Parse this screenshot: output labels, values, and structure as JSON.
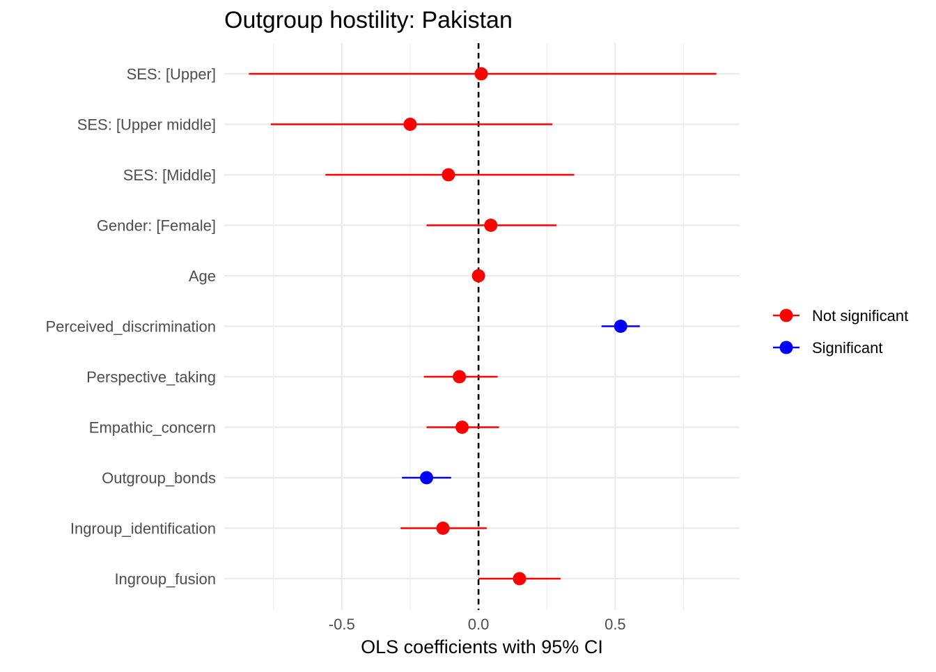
{
  "chart_data": {
    "type": "forest",
    "title": "Outgroup hostility: Pakistan",
    "xlabel": "OLS coefficients with 95% CI",
    "ylabel": "",
    "xlim": [
      -0.93,
      0.955
    ],
    "x_ticks": [
      -0.5,
      0.0,
      0.5
    ],
    "x_tick_labels": [
      "-0.5",
      "0.0",
      "0.5"
    ],
    "reference_line": 0,
    "grid": true,
    "legend_position": "right",
    "colors": {
      "Not significant": "#ff0000",
      "Significant": "#0000ff",
      "grid": "#ebebeb",
      "reference": "#000000"
    },
    "legend": [
      {
        "label": "Not significant",
        "color": "#ff0000"
      },
      {
        "label": "Significant",
        "color": "#0000ff"
      }
    ],
    "terms": [
      {
        "label": "SES:  [Upper]",
        "estimate": 0.01,
        "ci_low": -0.84,
        "ci_high": 0.87,
        "group": "Not significant"
      },
      {
        "label": "SES:  [Upper middle]",
        "estimate": -0.25,
        "ci_low": -0.76,
        "ci_high": 0.27,
        "group": "Not significant"
      },
      {
        "label": "SES:  [Middle]",
        "estimate": -0.11,
        "ci_low": -0.56,
        "ci_high": 0.35,
        "group": "Not significant"
      },
      {
        "label": "Gender:  [Female]",
        "estimate": 0.045,
        "ci_low": -0.19,
        "ci_high": 0.285,
        "group": "Not significant"
      },
      {
        "label": "Age",
        "estimate": 0.0,
        "ci_low": -0.005,
        "ci_high": 0.005,
        "group": "Not significant"
      },
      {
        "label": "Perceived_discrimination",
        "estimate": 0.52,
        "ci_low": 0.45,
        "ci_high": 0.59,
        "group": "Significant"
      },
      {
        "label": "Perspective_taking",
        "estimate": -0.07,
        "ci_low": -0.2,
        "ci_high": 0.07,
        "group": "Not significant"
      },
      {
        "label": "Empathic_concern",
        "estimate": -0.06,
        "ci_low": -0.19,
        "ci_high": 0.075,
        "group": "Not significant"
      },
      {
        "label": "Outgroup_bonds",
        "estimate": -0.19,
        "ci_low": -0.28,
        "ci_high": -0.1,
        "group": "Significant"
      },
      {
        "label": "Ingroup_identification",
        "estimate": -0.13,
        "ci_low": -0.285,
        "ci_high": 0.03,
        "group": "Not significant"
      },
      {
        "label": "Ingroup_fusion",
        "estimate": 0.15,
        "ci_low": 0.0,
        "ci_high": 0.3,
        "group": "Not significant"
      }
    ]
  }
}
